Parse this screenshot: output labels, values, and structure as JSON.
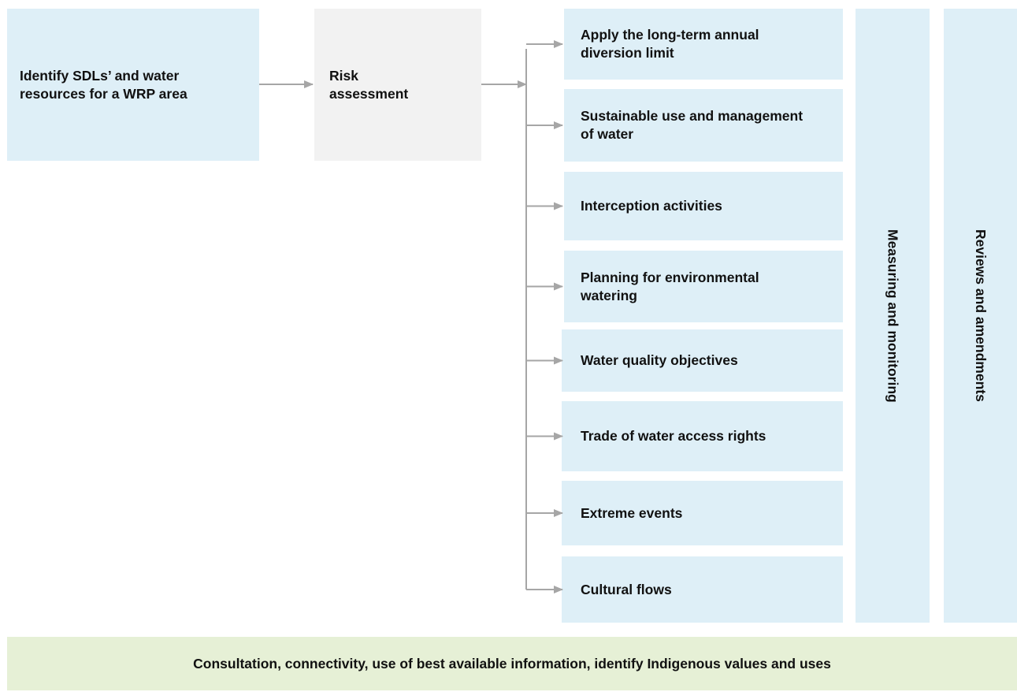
{
  "source": {
    "label": "Identify SDLs’ and water resources for a WRP area"
  },
  "assessment": {
    "label": "Risk assessment"
  },
  "steps": [
    {
      "label": "Apply the long-term annual diversion limit"
    },
    {
      "label": "Sustainable use and management of water"
    },
    {
      "label": "Interception activities"
    },
    {
      "label": "Planning for environmental watering"
    },
    {
      "label": "Water quality objectives"
    },
    {
      "label": "Trade of water access rights"
    },
    {
      "label": "Extreme events"
    },
    {
      "label": "Cultural flows"
    }
  ],
  "columns": [
    {
      "label": "Measuring and monitoring"
    },
    {
      "label": "Reviews and amendments"
    }
  ],
  "footer": {
    "label": "Consultation, connectivity, use of best available information, identify Indigenous values and uses"
  }
}
